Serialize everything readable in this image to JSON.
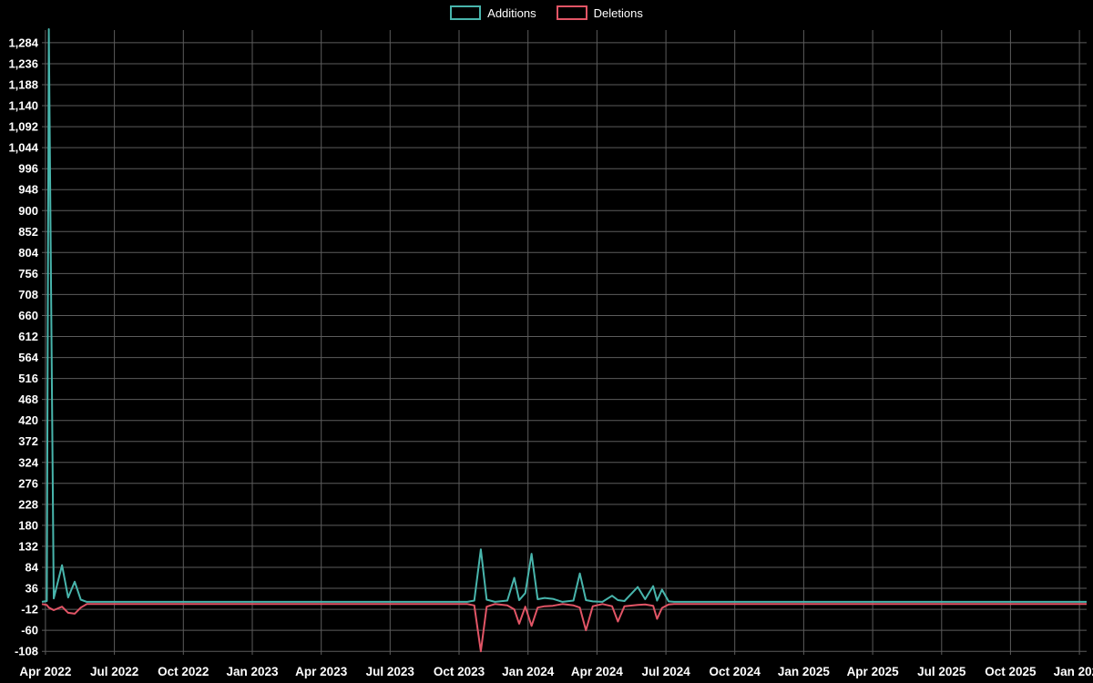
{
  "chart_data": {
    "type": "line",
    "title": "",
    "xlabel": "",
    "ylabel": "",
    "legend_position": "top-center",
    "grid": true,
    "colors": {
      "background": "#000000",
      "grid": "#5c5c5c",
      "text": "#ffffff"
    },
    "series": [
      {
        "name": "Additions",
        "color": "#48b5ac",
        "key": "a"
      },
      {
        "name": "Deletions",
        "color": "#e25566",
        "key": "d"
      }
    ],
    "y_ticks": {
      "min": -108,
      "max": 1284,
      "step": 48
    },
    "ylim": [
      -116,
      1313
    ],
    "xlim": [
      2022.237,
      2026.026
    ],
    "x_ticks": [
      {
        "label": "Apr 2022",
        "t": 2022.25
      },
      {
        "label": "Jul 2022",
        "t": 2022.5
      },
      {
        "label": "Oct 2022",
        "t": 2022.75
      },
      {
        "label": "Jan 2023",
        "t": 2023.0
      },
      {
        "label": "Apr 2023",
        "t": 2023.25
      },
      {
        "label": "Jul 2023",
        "t": 2023.5
      },
      {
        "label": "Oct 2023",
        "t": 2023.75
      },
      {
        "label": "Jan 2024",
        "t": 2024.0
      },
      {
        "label": "Apr 2024",
        "t": 2024.25
      },
      {
        "label": "Jul 2024",
        "t": 2024.5
      },
      {
        "label": "Oct 2024",
        "t": 2024.75
      },
      {
        "label": "Jan 2025",
        "t": 2025.0
      },
      {
        "label": "Apr 2025",
        "t": 2025.25
      },
      {
        "label": "Jul 2025",
        "t": 2025.5
      },
      {
        "label": "Oct 2025",
        "t": 2025.75
      },
      {
        "label": "Jan 2026",
        "t": 2026.0
      }
    ],
    "points": [
      {
        "t": 2022.237,
        "a": 0,
        "d": 0
      },
      {
        "t": 2022.255,
        "a": 2,
        "d": -2
      },
      {
        "t": 2022.262,
        "a": 1310,
        "d": -8
      },
      {
        "t": 2022.28,
        "a": 8,
        "d": -14
      },
      {
        "t": 2022.31,
        "a": 84,
        "d": -6
      },
      {
        "t": 2022.332,
        "a": 10,
        "d": -20
      },
      {
        "t": 2022.356,
        "a": 46,
        "d": -22
      },
      {
        "t": 2022.378,
        "a": 5,
        "d": -8
      },
      {
        "t": 2022.4,
        "a": 0,
        "d": 0
      },
      {
        "t": 2023.78,
        "a": 0,
        "d": 0
      },
      {
        "t": 2023.805,
        "a": 3,
        "d": -3
      },
      {
        "t": 2023.829,
        "a": 120,
        "d": -108
      },
      {
        "t": 2023.85,
        "a": 5,
        "d": -6
      },
      {
        "t": 2023.88,
        "a": 0,
        "d": 0
      },
      {
        "t": 2023.925,
        "a": 3,
        "d": -3
      },
      {
        "t": 2023.95,
        "a": 55,
        "d": -12
      },
      {
        "t": 2023.968,
        "a": 4,
        "d": -45
      },
      {
        "t": 2023.99,
        "a": 20,
        "d": -6
      },
      {
        "t": 2024.013,
        "a": 110,
        "d": -50
      },
      {
        "t": 2024.035,
        "a": 6,
        "d": -8
      },
      {
        "t": 2024.06,
        "a": 9,
        "d": -5
      },
      {
        "t": 2024.09,
        "a": 7,
        "d": -4
      },
      {
        "t": 2024.125,
        "a": 0,
        "d": 0
      },
      {
        "t": 2024.165,
        "a": 3,
        "d": -3
      },
      {
        "t": 2024.188,
        "a": 65,
        "d": -8
      },
      {
        "t": 2024.21,
        "a": 4,
        "d": -60
      },
      {
        "t": 2024.235,
        "a": 1,
        "d": -5
      },
      {
        "t": 2024.27,
        "a": 0,
        "d": 0
      },
      {
        "t": 2024.305,
        "a": 14,
        "d": -5
      },
      {
        "t": 2024.326,
        "a": 4,
        "d": -40
      },
      {
        "t": 2024.35,
        "a": 2,
        "d": -5
      },
      {
        "t": 2024.398,
        "a": 34,
        "d": -2
      },
      {
        "t": 2024.425,
        "a": 6,
        "d": -1
      },
      {
        "t": 2024.454,
        "a": 36,
        "d": -4
      },
      {
        "t": 2024.468,
        "a": 3,
        "d": -34
      },
      {
        "t": 2024.486,
        "a": 28,
        "d": -9
      },
      {
        "t": 2024.51,
        "a": 1,
        "d": -1
      },
      {
        "t": 2024.53,
        "a": 0,
        "d": 0
      },
      {
        "t": 2026.026,
        "a": 0,
        "d": 0
      }
    ]
  }
}
